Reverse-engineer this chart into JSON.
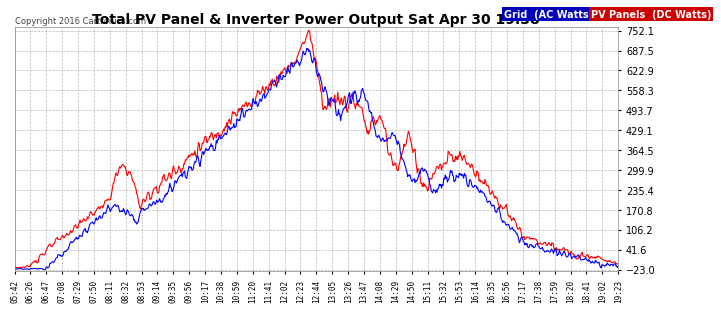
{
  "title": "Total PV Panel & Inverter Power Output Sat Apr 30 19:38",
  "copyright": "Copyright 2016 Cartronics.com",
  "legend_blue": "Grid  (AC Watts)",
  "legend_red": "PV Panels  (DC Watts)",
  "yticks": [
    752.1,
    687.5,
    622.9,
    558.3,
    493.7,
    429.1,
    364.5,
    299.9,
    235.4,
    170.8,
    106.2,
    41.6,
    -23.0
  ],
  "ymin": -23.0,
  "ymax": 752.1,
  "bg_color": "#ffffff",
  "plot_bg": "#ffffff",
  "grid_color": "#aaaaaa",
  "blue_color": "#0000ff",
  "red_color": "#ff0000",
  "title_color": "#000000",
  "tick_label_color": "#000000",
  "copyright_color": "#444444",
  "xtick_labels": [
    "05:42",
    "06:26",
    "06:47",
    "07:08",
    "07:29",
    "07:50",
    "08:11",
    "08:32",
    "08:53",
    "09:14",
    "09:35",
    "09:56",
    "10:17",
    "10:38",
    "10:59",
    "11:20",
    "11:41",
    "12:02",
    "12:23",
    "12:44",
    "13:05",
    "13:26",
    "13:47",
    "14:08",
    "14:29",
    "14:50",
    "15:11",
    "15:32",
    "15:53",
    "16:14",
    "16:35",
    "16:56",
    "17:17",
    "17:38",
    "17:59",
    "18:20",
    "18:41",
    "19:02",
    "19:23"
  ],
  "legend_blue_bg": "#0000cc",
  "legend_red_bg": "#cc0000"
}
